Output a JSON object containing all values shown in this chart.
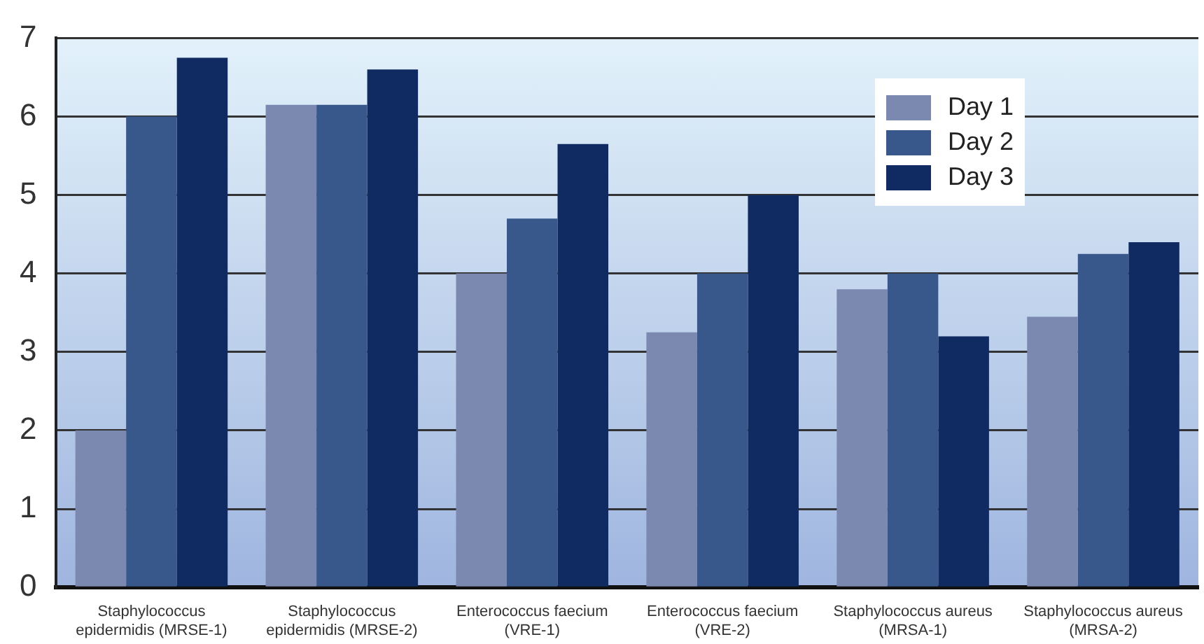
{
  "chart_data": {
    "type": "bar",
    "categories": [
      "Staphylococcus epidermidis (MRSE-1)",
      "Staphylococcus epidermidis (MRSE-2)",
      "Enterococcus faecium (VRE-1)",
      "Enterococcus faecium (VRE-2)",
      "Staphylococcus aureus (MRSA-1)",
      "Staphylococcus aureus (MRSA-2)"
    ],
    "series": [
      {
        "name": "Day 1",
        "color": "#7b88b0",
        "values": [
          2.0,
          6.15,
          4.0,
          3.25,
          3.8,
          3.45
        ]
      },
      {
        "name": "Day 2",
        "color": "#38578b",
        "values": [
          6.0,
          6.15,
          4.7,
          4.0,
          4.0,
          4.25
        ]
      },
      {
        "name": "Day 3",
        "color": "#0f2b61",
        "values": [
          6.75,
          6.6,
          5.65,
          5.0,
          3.2,
          4.4
        ]
      }
    ],
    "ylim": [
      0,
      7
    ],
    "yticks": [
      0,
      1,
      2,
      3,
      4,
      5,
      6,
      7
    ],
    "grid": "y",
    "legend": "top right"
  }
}
